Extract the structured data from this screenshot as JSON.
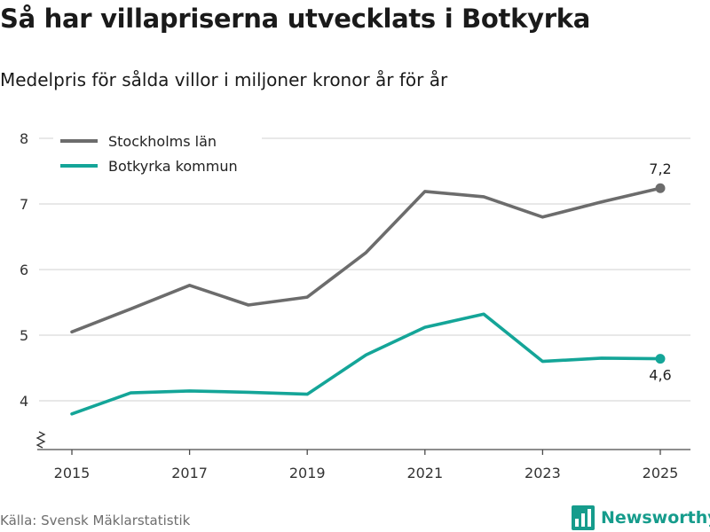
{
  "title": "Så har villapriserna utvecklats i Botkyrka",
  "subtitle": "Medelpris för sålda villor i miljoner kronor år för år",
  "source": "Källa: Svensk Mäklarstatistik",
  "brand": "Newsworthy",
  "colors": {
    "stockholm": "#6c6c6c",
    "botkyrka": "#14a598",
    "grid": "#d9d9d9",
    "axis": "#4a4a4a",
    "brand": "#169c8c"
  },
  "chart_data": {
    "type": "line",
    "x": [
      2015,
      2016,
      2017,
      2018,
      2019,
      2020,
      2021,
      2022,
      2023,
      2024,
      2025
    ],
    "x_tick_labels": [
      "2015",
      "2017",
      "2019",
      "2021",
      "2023",
      "2025"
    ],
    "x_tick_values": [
      2015,
      2017,
      2019,
      2021,
      2023,
      2025
    ],
    "y_ticks": [
      4,
      5,
      6,
      7,
      8
    ],
    "y_tick_labels": [
      "4",
      "5",
      "6",
      "7",
      "8"
    ],
    "ylim": [
      3.3,
      8.0
    ],
    "xlim": [
      2014.5,
      2025.5
    ],
    "y_axis_break": true,
    "legend_position": "top-left",
    "series": [
      {
        "name": "Stockholms län",
        "key": "stockholm",
        "values": [
          5.05,
          5.4,
          5.76,
          5.46,
          5.58,
          6.26,
          7.19,
          7.11,
          6.8,
          7.03,
          7.24
        ],
        "end_label": "7,2",
        "end_label_position": "above"
      },
      {
        "name": "Botkyrka kommun",
        "key": "botkyrka",
        "values": [
          3.8,
          4.12,
          4.15,
          4.13,
          4.1,
          4.7,
          5.12,
          5.32,
          4.6,
          4.65,
          4.64
        ],
        "end_label": "4,6",
        "end_label_position": "below"
      }
    ]
  }
}
